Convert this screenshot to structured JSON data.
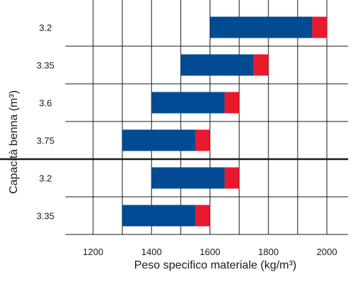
{
  "chart_data": {
    "type": "bar",
    "orientation": "horizontal",
    "stacked": "floating-range",
    "xlabel": "Peso specifico materiale (kg/m³)",
    "ylabel": "Capacità benna (m³)",
    "xlim": [
      1100,
      2100
    ],
    "x_ticks": [
      "1200",
      "1400",
      "1600",
      "1800",
      "2000"
    ],
    "categories": [
      "3.2",
      "3.35",
      "3.6",
      "3.75",
      "3.2",
      "3.35"
    ],
    "grid": true,
    "separator_after_index": 3,
    "colors": {
      "main": "#004b93",
      "end": "#e8192c"
    },
    "series": [
      {
        "start": 1600,
        "end": 2000,
        "end_band": 50
      },
      {
        "start": 1500,
        "end": 1800,
        "end_band": 50
      },
      {
        "start": 1400,
        "end": 1700,
        "end_band": 50
      },
      {
        "start": 1300,
        "end": 1600,
        "end_band": 50
      },
      {
        "start": 1400,
        "end": 1700,
        "end_band": 50
      },
      {
        "start": 1300,
        "end": 1600,
        "end_band": 50
      }
    ]
  }
}
